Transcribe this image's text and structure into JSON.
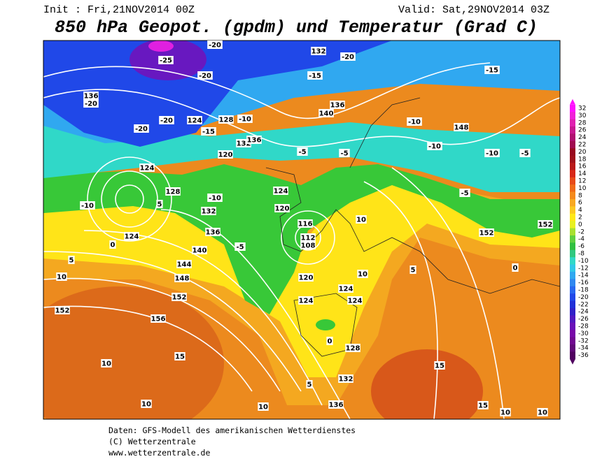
{
  "header": {
    "init": "Init : Fri,21NOV2014 00Z",
    "valid": "Valid: Sat,29NOV2014 03Z",
    "title": "850 hPa Geopot. (gpdm) und Temperatur (Grad C)"
  },
  "map": {
    "labels": [
      "136",
      "-20",
      "-25",
      "-20",
      "-20",
      "-20",
      "-20",
      "124",
      "-15",
      "128",
      "-10",
      "132",
      "136",
      "120",
      "124",
      "-10",
      "124",
      "128",
      "132",
      "136",
      "140",
      "144",
      "148",
      "152",
      "156",
      "152",
      "132",
      "-20",
      "-15",
      "136",
      "140",
      "-5",
      "-5",
      "124",
      "120",
      "116",
      "112",
      "108",
      "120",
      "124",
      "124",
      "124",
      "128",
      "132",
      "136",
      "-10",
      "-10",
      "148",
      "-10",
      "-5",
      "-5",
      "-15",
      "152",
      "152",
      "10",
      "10",
      "5",
      "0",
      "15",
      "15",
      "10",
      "10",
      "10",
      "15",
      "10",
      "5",
      "10",
      "5",
      "10",
      "-5",
      "-10",
      "0",
      "5",
      "0"
    ]
  },
  "legend": {
    "ticks": [
      32,
      30,
      28,
      26,
      24,
      22,
      20,
      18,
      16,
      14,
      12,
      10,
      8,
      6,
      4,
      2,
      0,
      -2,
      -4,
      -6,
      -8,
      -10,
      -12,
      -14,
      -16,
      -18,
      -20,
      -22,
      -24,
      -26,
      -28,
      -30,
      -32,
      -34,
      -36
    ],
    "colors": [
      "#ff10ff",
      "#f020d8",
      "#e020b0",
      "#c81890",
      "#b01070",
      "#a00a50",
      "#98081e",
      "#a0101a",
      "#b81818",
      "#d82818",
      "#e84a18",
      "#f06a18",
      "#f48a1c",
      "#f8a820",
      "#fcc820",
      "#ffe818",
      "#e8f020",
      "#a8e030",
      "#60d040",
      "#30c040",
      "#30c880",
      "#30d8c8",
      "#30c8e8",
      "#30a8f0",
      "#3088f0",
      "#2868f0",
      "#2048e8",
      "#2030d8",
      "#3020c8",
      "#5018c0",
      "#6810b8",
      "#7808a8",
      "#700890",
      "#600878",
      "#500060"
    ]
  },
  "footer": [
    "Daten: GFS-Modell des amerikanischen Wetterdienstes",
    "(C) Wetterzentrale",
    "www.wetterzentrale.de"
  ]
}
